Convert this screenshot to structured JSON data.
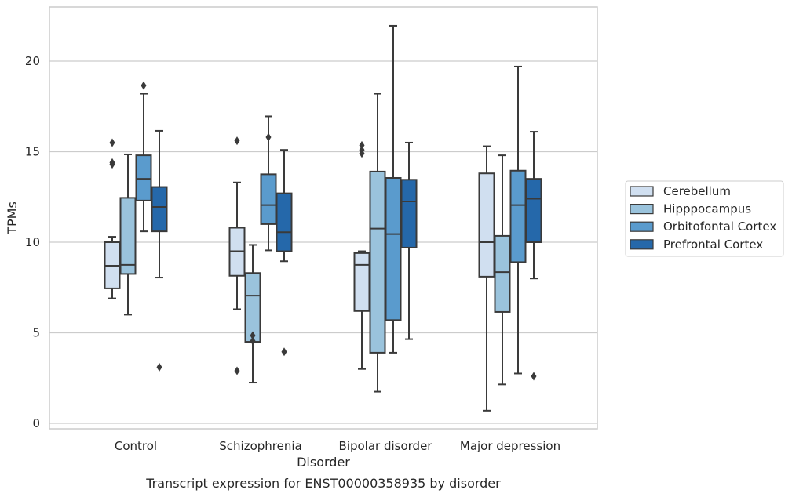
{
  "chart_data": {
    "type": "box",
    "title": "",
    "caption": "Transcript expression for ENST00000358935 by disorder",
    "xlabel": "Disorder",
    "ylabel": "TPMs",
    "ylim": [
      -0.3,
      23.0
    ],
    "yticks": [
      0,
      5,
      10,
      15,
      20
    ],
    "grid": "horizontal",
    "legend_position": "right",
    "categories": [
      "Control",
      "Schizophrenia",
      "Bipolar disorder",
      "Major depression"
    ],
    "series": [
      {
        "name": "Cerebellum",
        "color": "#d0dff0",
        "boxes": [
          {
            "whisker_low": 6.9,
            "q1": 7.45,
            "median": 8.7,
            "q3": 10.0,
            "whisker_high": 10.3,
            "outliers": [
              14.3,
              14.4,
              15.5
            ]
          },
          {
            "whisker_low": 6.3,
            "q1": 8.15,
            "median": 9.5,
            "q3": 10.8,
            "whisker_high": 13.3,
            "outliers": [
              2.9,
              15.6
            ]
          },
          {
            "whisker_low": 3.0,
            "q1": 6.2,
            "median": 8.75,
            "q3": 9.4,
            "whisker_high": 9.5,
            "outliers": [
              14.9,
              15.1,
              15.35
            ]
          },
          {
            "whisker_low": 0.7,
            "q1": 8.1,
            "median": 10.0,
            "q3": 13.8,
            "whisker_high": 15.3,
            "outliers": []
          }
        ]
      },
      {
        "name": "Hipppocampus",
        "color": "#9ac3dc",
        "boxes": [
          {
            "whisker_low": 6.0,
            "q1": 8.25,
            "median": 8.75,
            "q3": 12.45,
            "whisker_high": 14.85,
            "outliers": []
          },
          {
            "whisker_low": 2.25,
            "q1": 4.5,
            "median": 7.05,
            "q3": 8.3,
            "whisker_high": 9.85,
            "outliers": [
              4.55,
              4.85
            ]
          },
          {
            "whisker_low": 1.75,
            "q1": 3.9,
            "median": 10.75,
            "q3": 13.9,
            "whisker_high": 18.2,
            "outliers": []
          },
          {
            "whisker_low": 2.15,
            "q1": 6.15,
            "median": 8.35,
            "q3": 10.35,
            "whisker_high": 14.8,
            "outliers": []
          }
        ]
      },
      {
        "name": "Orbitofontal Cortex",
        "color": "#5a9bcd",
        "boxes": [
          {
            "whisker_low": 10.6,
            "q1": 12.3,
            "median": 13.5,
            "q3": 14.8,
            "whisker_high": 18.2,
            "outliers": [
              18.65
            ]
          },
          {
            "whisker_low": 9.55,
            "q1": 11.0,
            "median": 12.05,
            "q3": 13.75,
            "whisker_high": 16.95,
            "outliers": [
              15.8
            ]
          },
          {
            "whisker_low": 3.9,
            "q1": 5.7,
            "median": 10.45,
            "q3": 13.55,
            "whisker_high": 21.95,
            "outliers": []
          },
          {
            "whisker_low": 2.75,
            "q1": 8.9,
            "median": 12.05,
            "q3": 13.95,
            "whisker_high": 19.7,
            "outliers": []
          }
        ]
      },
      {
        "name": "Prefrontal Cortex",
        "color": "#2568aa",
        "boxes": [
          {
            "whisker_low": 8.05,
            "q1": 10.6,
            "median": 11.95,
            "q3": 13.05,
            "whisker_high": 16.15,
            "outliers": [
              3.1
            ]
          },
          {
            "whisker_low": 8.95,
            "q1": 9.5,
            "median": 10.55,
            "q3": 12.7,
            "whisker_high": 15.1,
            "outliers": [
              3.95
            ]
          },
          {
            "whisker_low": 4.65,
            "q1": 9.7,
            "median": 12.25,
            "q3": 13.45,
            "whisker_high": 15.5,
            "outliers": []
          },
          {
            "whisker_low": 8.0,
            "q1": 10.0,
            "median": 12.4,
            "q3": 13.5,
            "whisker_high": 16.1,
            "outliers": [
              2.6
            ]
          }
        ]
      }
    ]
  }
}
